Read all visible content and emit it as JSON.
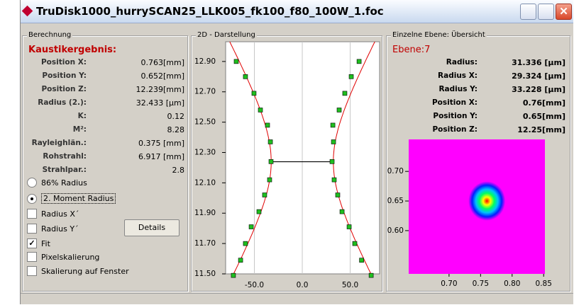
{
  "window": {
    "title": "TruDisk1000_hurrySCAN25_LLK005_fk100_f80_100W_1.foc"
  },
  "calculation": {
    "group_title": "Berechnung",
    "heading": "Kaustikergebnis:",
    "rows": [
      {
        "label": "Position X:",
        "value": "0.763[mm]"
      },
      {
        "label": "Position Y:",
        "value": "0.652[mm]"
      },
      {
        "label": "Position Z:",
        "value": "12.239[mm]"
      },
      {
        "label": "Radius (2.):",
        "value": "32.433 [µm]"
      },
      {
        "label": "K:",
        "value": "0.12"
      },
      {
        "label": "M²:",
        "value": "8.28"
      },
      {
        "label": "Rayleighlän.:",
        "value": "0.375 [mm]"
      },
      {
        "label": "Rohstrahl:",
        "value": "6.917 [mm]"
      },
      {
        "label": "Strahlpar.:",
        "value": "2.8"
      }
    ],
    "radios": [
      {
        "label": "86% Radius",
        "selected": false
      },
      {
        "label": "2. Moment Radius",
        "selected": true
      }
    ],
    "checkboxes": [
      {
        "label": "Radius X´",
        "checked": false
      },
      {
        "label": "Radius Y´",
        "checked": false
      },
      {
        "label": "Fit",
        "checked": true
      },
      {
        "label": "Pixelskalierung",
        "checked": false
      },
      {
        "label": "Skalierung auf Fenster",
        "checked": false
      }
    ],
    "button": "Details"
  },
  "caustic_chart": {
    "type": "scatter",
    "title": "2D - Darstellung",
    "marker_color": "#1fbf1f",
    "fit_color": "#e00000",
    "waist_color": "#000000",
    "grid": true,
    "left": {
      "x": [
        -68.9,
        -59.3,
        -50.4,
        -43.7,
        -36.3,
        -33.3,
        -32.6,
        -34.1,
        -39.3,
        -45.2,
        -53.3,
        -59.3,
        -64.4,
        -71.9
      ],
      "y": [
        12.9,
        12.8,
        12.69,
        12.58,
        12.48,
        12.37,
        12.24,
        12.12,
        12.02,
        11.91,
        11.81,
        11.7,
        11.59,
        11.49
      ]
    },
    "right": {
      "x": [
        59.3,
        51.1,
        44.4,
        38.5,
        31.9,
        32.6,
        31.1,
        33.3,
        37.0,
        41.5,
        48.9,
        54.8,
        61.9,
        71.9
      ],
      "y": [
        12.9,
        12.8,
        12.69,
        12.58,
        12.48,
        12.37,
        12.24,
        12.12,
        12.02,
        11.91,
        11.81,
        11.7,
        11.59,
        11.49
      ]
    },
    "xlim": [
      -80,
      80.7
    ],
    "ylim": [
      11.5,
      13.03
    ],
    "xticks": [
      {
        "value": -50,
        "label": "-50.0"
      },
      {
        "value": 0,
        "label": "0.0"
      },
      {
        "value": 50,
        "label": "50.0"
      }
    ],
    "yticks": [
      {
        "value": 12.9,
        "label": "12.90"
      },
      {
        "value": 12.7,
        "label": "12.70"
      },
      {
        "value": 12.5,
        "label": "12.50"
      },
      {
        "value": 12.3,
        "label": "12.30"
      },
      {
        "value": 12.1,
        "label": "12.10"
      },
      {
        "value": 11.9,
        "label": "11.90"
      },
      {
        "value": 11.7,
        "label": "11.70"
      },
      {
        "value": 11.5,
        "label": "11.50"
      }
    ]
  },
  "plane": {
    "group_title": "Einzelne Ebene: Übersicht",
    "heading": "Ebene:7",
    "rows": [
      {
        "label": "Radius:",
        "value": "31.336 [µm]"
      },
      {
        "label": "Radius X:",
        "value": "29.324 [µm]"
      },
      {
        "label": "Radius Y:",
        "value": "33.228 [µm]"
      },
      {
        "label": "Position X:",
        "value": "0.76[mm]"
      },
      {
        "label": "Position Y:",
        "value": "0.65[mm]"
      },
      {
        "label": "Position Z:",
        "value": "12.25[mm]"
      }
    ],
    "heatmap": {
      "type": "heatmap",
      "background": "#ff00ff",
      "xlim": [
        0.636,
        0.852
      ],
      "ylim": [
        0.527,
        0.754
      ],
      "xticks": [
        {
          "value": 0.7,
          "label": "0.70"
        },
        {
          "value": 0.75,
          "label": "0.75"
        },
        {
          "value": 0.8,
          "label": "0.80"
        },
        {
          "value": 0.85,
          "label": "0.85"
        }
      ],
      "yticks": [
        {
          "value": 0.7,
          "label": "0.70"
        },
        {
          "value": 0.65,
          "label": "0.65"
        },
        {
          "value": 0.6,
          "label": "0.60"
        }
      ]
    }
  }
}
